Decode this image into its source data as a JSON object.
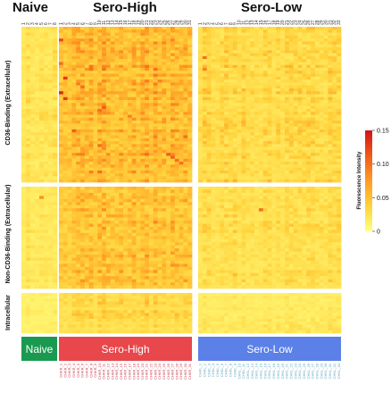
{
  "chart_data": {
    "type": "heatmap",
    "groups": [
      {
        "name": "Naive",
        "band_label": "Naive",
        "color": "#1a9a50",
        "id_color": "#7bb0b8",
        "n_columns": 8
      },
      {
        "name": "Sero-High",
        "band_label": "Sero-High",
        "color": "#e8474c",
        "id_color": "#c83c4e",
        "n_columns": 31
      },
      {
        "name": "Sero-Low",
        "band_label": "Sero-Low",
        "color": "#5b80e8",
        "id_color": "#5ea8c0",
        "n_columns": 33
      }
    ],
    "row_panels": [
      {
        "name": "CD36-Binding (Extracellular)",
        "n_rows": 53
      },
      {
        "name": "Non-CD36-Binding (Extracellular)",
        "n_rows": 33
      },
      {
        "name": "Intracellular",
        "n_rows": 14
      }
    ],
    "legend": {
      "title": "Fluorescence Intensity",
      "ticks": [
        0,
        0.05,
        0.1,
        0.15
      ],
      "tick_labels": [
        "0",
        "0.05",
        "0.10",
        "0.15"
      ],
      "range": [
        0,
        0.15
      ],
      "placement": "right"
    },
    "colorscale": [
      "#ffff80",
      "#ffd23c",
      "#ff9c24",
      "#f05a1a",
      "#d21414"
    ],
    "column_ids_sero_high": [
      "CHKR_1",
      "CHKR_2",
      "CHKR_3",
      "CHKR_4",
      "CHKR_5",
      "CHKR_6",
      "CHKR_7",
      "CHKR_8",
      "CHKR_9",
      "CHKR_10",
      "CHKR_11",
      "CHKR_12",
      "CHKR_13",
      "CHKR_14",
      "CHKR_15",
      "CHKR_16",
      "CHKR_17",
      "CHKR_18",
      "CHKR_19",
      "CHKR_20",
      "CHKR_21",
      "CHKR_22",
      "CHKR_23",
      "CHKR_24",
      "CHKR_25",
      "CHKR_26",
      "CHKR_27",
      "CHKR_28",
      "CHKR_29",
      "CHKR_30",
      "CHKR_31"
    ],
    "column_ids_sero_low": [
      "CHKL_1",
      "CHKL_2",
      "CHKL_3",
      "CHKL_4",
      "CHKL_5",
      "CHKL_6",
      "CHKL_7",
      "CHKL_8",
      "CHKL_9",
      "CHKL_10",
      "CHKL_11",
      "CHKL_12",
      "CHKL_13",
      "CHKL_14",
      "CHKL_15",
      "CHKL_16",
      "CHKL_17",
      "CHKL_18",
      "CHKL_19",
      "CHKL_20",
      "CHKL_21",
      "CHKL_22",
      "CHKL_23",
      "CHKL_24",
      "CHKL_25",
      "CHKL_26",
      "CHKL_27",
      "CHKL_28",
      "CHKL_29",
      "CHKL_30",
      "CHKL_31",
      "CHKL_32",
      "CHKL_33"
    ],
    "hot_spots": [
      {
        "group": "Sero-High",
        "col": 0,
        "row": 4,
        "value": 0.12
      },
      {
        "group": "Sero-High",
        "col": 0,
        "row": 12,
        "value": 0.1
      },
      {
        "group": "Sero-High",
        "col": 1,
        "row": 17,
        "value": 0.13
      },
      {
        "group": "Sero-High",
        "col": 0,
        "row": 22,
        "value": 0.14
      },
      {
        "group": "Sero-High",
        "col": 1,
        "row": 24,
        "value": 0.13
      },
      {
        "group": "Sero-High",
        "col": 3,
        "row": 35,
        "value": 0.11
      },
      {
        "group": "Sero-High",
        "col": 5,
        "row": 20,
        "value": 0.1
      },
      {
        "group": "Sero-High",
        "col": 9,
        "row": 28,
        "value": 0.1
      },
      {
        "group": "Sero-High",
        "col": 10,
        "row": 27,
        "value": 0.11
      },
      {
        "group": "Sero-High",
        "col": 16,
        "row": 30,
        "value": 0.09
      },
      {
        "group": "Sero-High",
        "col": 22,
        "row": 14,
        "value": 0.1
      },
      {
        "group": "Sero-High",
        "col": 23,
        "row": 18,
        "value": 0.09
      },
      {
        "group": "Sero-High",
        "col": 25,
        "row": 43,
        "value": 0.11
      },
      {
        "group": "Sero-High",
        "col": 26,
        "row": 44,
        "value": 0.11
      },
      {
        "group": "Sero-High",
        "col": 27,
        "row": 45,
        "value": 0.1
      },
      {
        "group": "Sero-High",
        "col": 28,
        "row": 46,
        "value": 0.1
      },
      {
        "group": "Sero-High",
        "col": 29,
        "row": 37,
        "value": 0.1
      },
      {
        "group": "Sero-Low",
        "col": 1,
        "row": 10,
        "value": 0.1
      },
      {
        "group": "Sero-Low",
        "col": 1,
        "row": 14,
        "value": 0.09
      },
      {
        "group": "Sero-Low",
        "col": 14,
        "row": 60,
        "value": 0.1
      },
      {
        "group": "Naive",
        "col": 4,
        "row": 56,
        "value": 0.08
      }
    ]
  }
}
